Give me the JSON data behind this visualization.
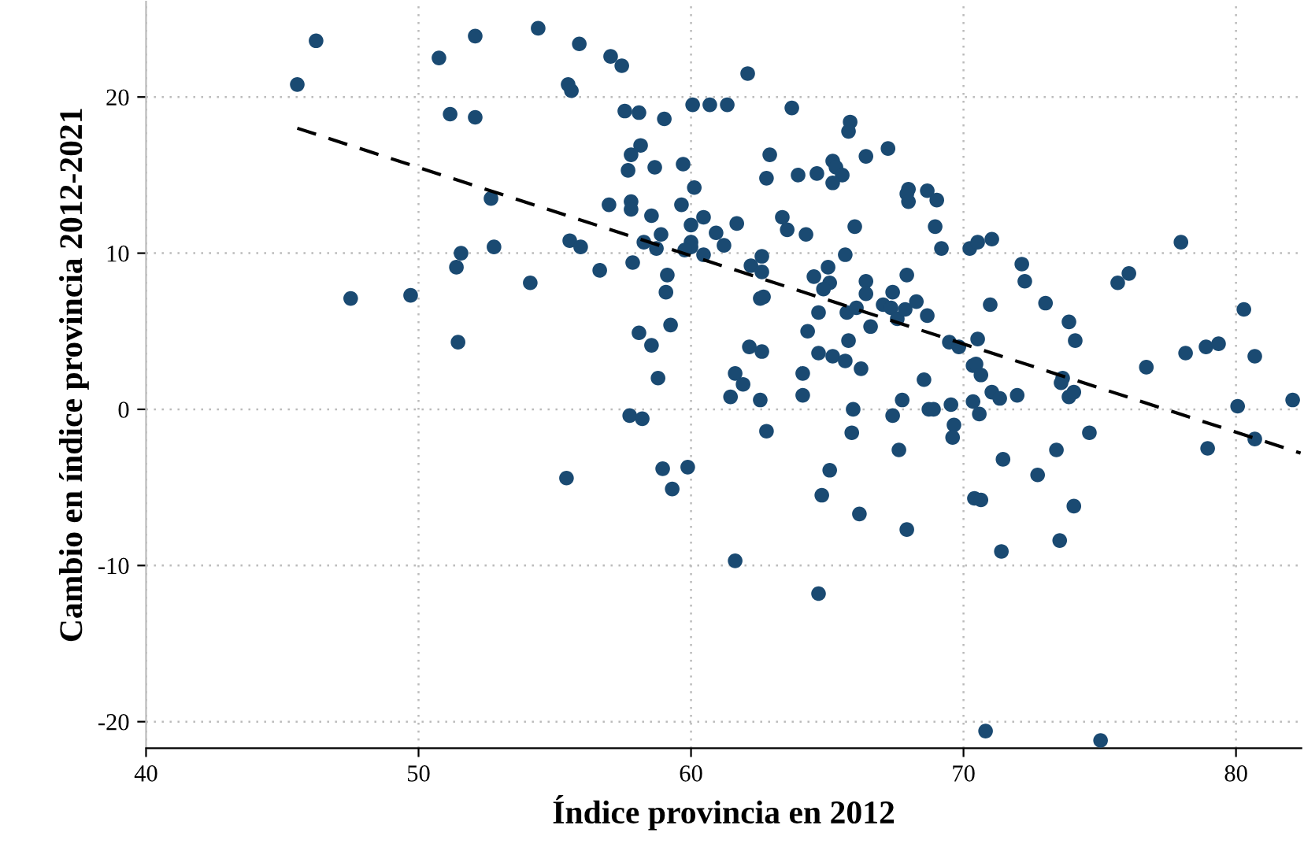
{
  "chart_data": {
    "type": "scatter",
    "xlabel": "Índice provincia en 2012",
    "ylabel": "Cambio en índice provincia 2012-2021",
    "xlim": [
      40,
      82.4
    ],
    "ylim": [
      -21.7,
      26.1
    ],
    "xticks": [
      40,
      50,
      60,
      70,
      80
    ],
    "yticks": [
      {
        "value": -20,
        "label": "-20"
      },
      {
        "value": -10,
        "label": "-10"
      },
      0,
      10,
      20
    ],
    "grid": true,
    "marker": "circle",
    "series": [
      {
        "color": "#1a4a72",
        "x": [
          45.55,
          46.24,
          47.51,
          49.71,
          50.75,
          52.08,
          51.16,
          52.08,
          52.66,
          52.77,
          51.56,
          51.39,
          54.1,
          51.45,
          54.39,
          55.9,
          57.05,
          57.46,
          55.49,
          55.61,
          57.57,
          58.09,
          59.02,
          60.06,
          60.69,
          61.33,
          62.08,
          63.7,
          65.84,
          65.78,
          58.15,
          57.8,
          57.69,
          58.67,
          59.71,
          62.89,
          62.77,
          63.93,
          64.62,
          65.2,
          65.32,
          65.55,
          65.2,
          66.42,
          67.23,
          67.98,
          67.92,
          67.98,
          68.67,
          60.12,
          56.99,
          57.8,
          57.8,
          59.65,
          58.55,
          60.46,
          60.0,
          61.68,
          60.92,
          63.35,
          63.53,
          64.22,
          66.01,
          58.9,
          55.55,
          55.95,
          58.27,
          58.73,
          60.0,
          60.0,
          59.77,
          61.21,
          60.46,
          62.6,
          62.2,
          62.6,
          57.86,
          56.65,
          59.13,
          59.08,
          59.25,
          58.09,
          58.55,
          58.79,
          61.62,
          62.14,
          62.6,
          62.54,
          62.66,
          65.66,
          65.03,
          64.51,
          65.09,
          64.86,
          64.68,
          64.28,
          64.68,
          65.2,
          65.66,
          65.78,
          66.24,
          64.1,
          65.72,
          66.07,
          66.42,
          66.42,
          66.59,
          67.05,
          67.4,
          67.34,
          67.57,
          67.86,
          67.92,
          68.27,
          68.67,
          69.02,
          68.96,
          69.19,
          70.23,
          70.52,
          71.04,
          72.14,
          72.25,
          70.98,
          73.01,
          73.87,
          74.1,
          75.66,
          76.07,
          77.98,
          80.29,
          80.69,
          78.15,
          78.9,
          79.36,
          76.71,
          69.48,
          69.83,
          70.52,
          70.35,
          70.46,
          70.64,
          73.64,
          61.91,
          61.45,
          62.54,
          64.1,
          68.55,
          65.95,
          65.9,
          67.75,
          67.4,
          67.63,
          68.73,
          57.75,
          58.21,
          62.77,
          55.43,
          58.96,
          59.31,
          59.88,
          65.09,
          64.8,
          66.18,
          67.92,
          61.62,
          64.68,
          68.9,
          69.54,
          69.65,
          69.6,
          70.35,
          70.58,
          71.04,
          71.33,
          71.97,
          73.58,
          73.87,
          74.05,
          74.62,
          73.41,
          71.45,
          72.72,
          70.4,
          70.64,
          74.05,
          73.53,
          71.39,
          78.96,
          80.06,
          80.69,
          82.08,
          70.81,
          75.03
        ],
        "values": [
          20.8,
          23.6,
          7.1,
          7.3,
          22.5,
          23.9,
          18.9,
          18.7,
          13.5,
          10.4,
          10.0,
          9.1,
          8.1,
          4.3,
          24.4,
          23.4,
          22.6,
          22.0,
          20.8,
          20.4,
          19.1,
          19.0,
          18.6,
          19.5,
          19.5,
          19.5,
          21.5,
          19.3,
          18.4,
          17.8,
          16.9,
          16.3,
          15.3,
          15.5,
          15.7,
          16.3,
          14.8,
          15.0,
          15.1,
          15.9,
          15.5,
          15.0,
          14.5,
          16.2,
          16.7,
          14.1,
          13.8,
          13.3,
          14.0,
          14.2,
          13.1,
          13.3,
          12.8,
          13.1,
          12.4,
          12.3,
          11.8,
          11.9,
          11.3,
          12.3,
          11.5,
          11.2,
          11.7,
          11.2,
          10.8,
          10.4,
          10.7,
          10.3,
          10.7,
          10.4,
          10.2,
          10.5,
          9.9,
          9.8,
          9.2,
          8.8,
          9.4,
          8.9,
          8.6,
          7.5,
          5.4,
          4.9,
          4.1,
          2.0,
          2.3,
          4.0,
          3.7,
          7.1,
          7.2,
          9.9,
          9.1,
          8.5,
          8.1,
          7.7,
          6.2,
          5.0,
          3.6,
          3.4,
          3.1,
          4.4,
          2.6,
          2.3,
          6.2,
          6.5,
          8.2,
          7.4,
          5.3,
          6.7,
          7.5,
          6.5,
          5.8,
          6.4,
          8.6,
          6.9,
          6.0,
          13.4,
          11.7,
          10.3,
          10.3,
          10.7,
          10.9,
          9.3,
          8.2,
          6.7,
          6.8,
          5.6,
          4.4,
          8.1,
          8.7,
          10.7,
          6.4,
          3.4,
          3.6,
          4.0,
          4.2,
          2.7,
          4.3,
          4.0,
          4.5,
          2.8,
          2.9,
          2.2,
          2.0,
          1.6,
          0.8,
          0.6,
          0.9,
          1.9,
          0.0,
          -1.5,
          0.6,
          -0.4,
          -2.6,
          0.0,
          -0.4,
          -0.6,
          -1.4,
          -4.4,
          -3.8,
          -5.1,
          -3.7,
          -3.9,
          -5.5,
          -6.7,
          -7.7,
          -9.7,
          -11.8,
          0.0,
          0.3,
          -1.0,
          -1.8,
          0.5,
          -0.3,
          1.1,
          0.7,
          0.9,
          1.7,
          0.8,
          1.1,
          -1.5,
          -2.6,
          -3.2,
          -4.2,
          -5.7,
          -5.8,
          -6.2,
          -8.4,
          -9.1,
          -2.5,
          0.2,
          -1.9,
          0.6,
          -20.6,
          -21.2
        ]
      },
      {
        "type": "line",
        "color": "#000000",
        "line_style": "dashed",
        "marker": "none",
        "x": [
          45.55,
          82.37
        ],
        "values": [
          18.0,
          -2.8
        ]
      }
    ]
  }
}
